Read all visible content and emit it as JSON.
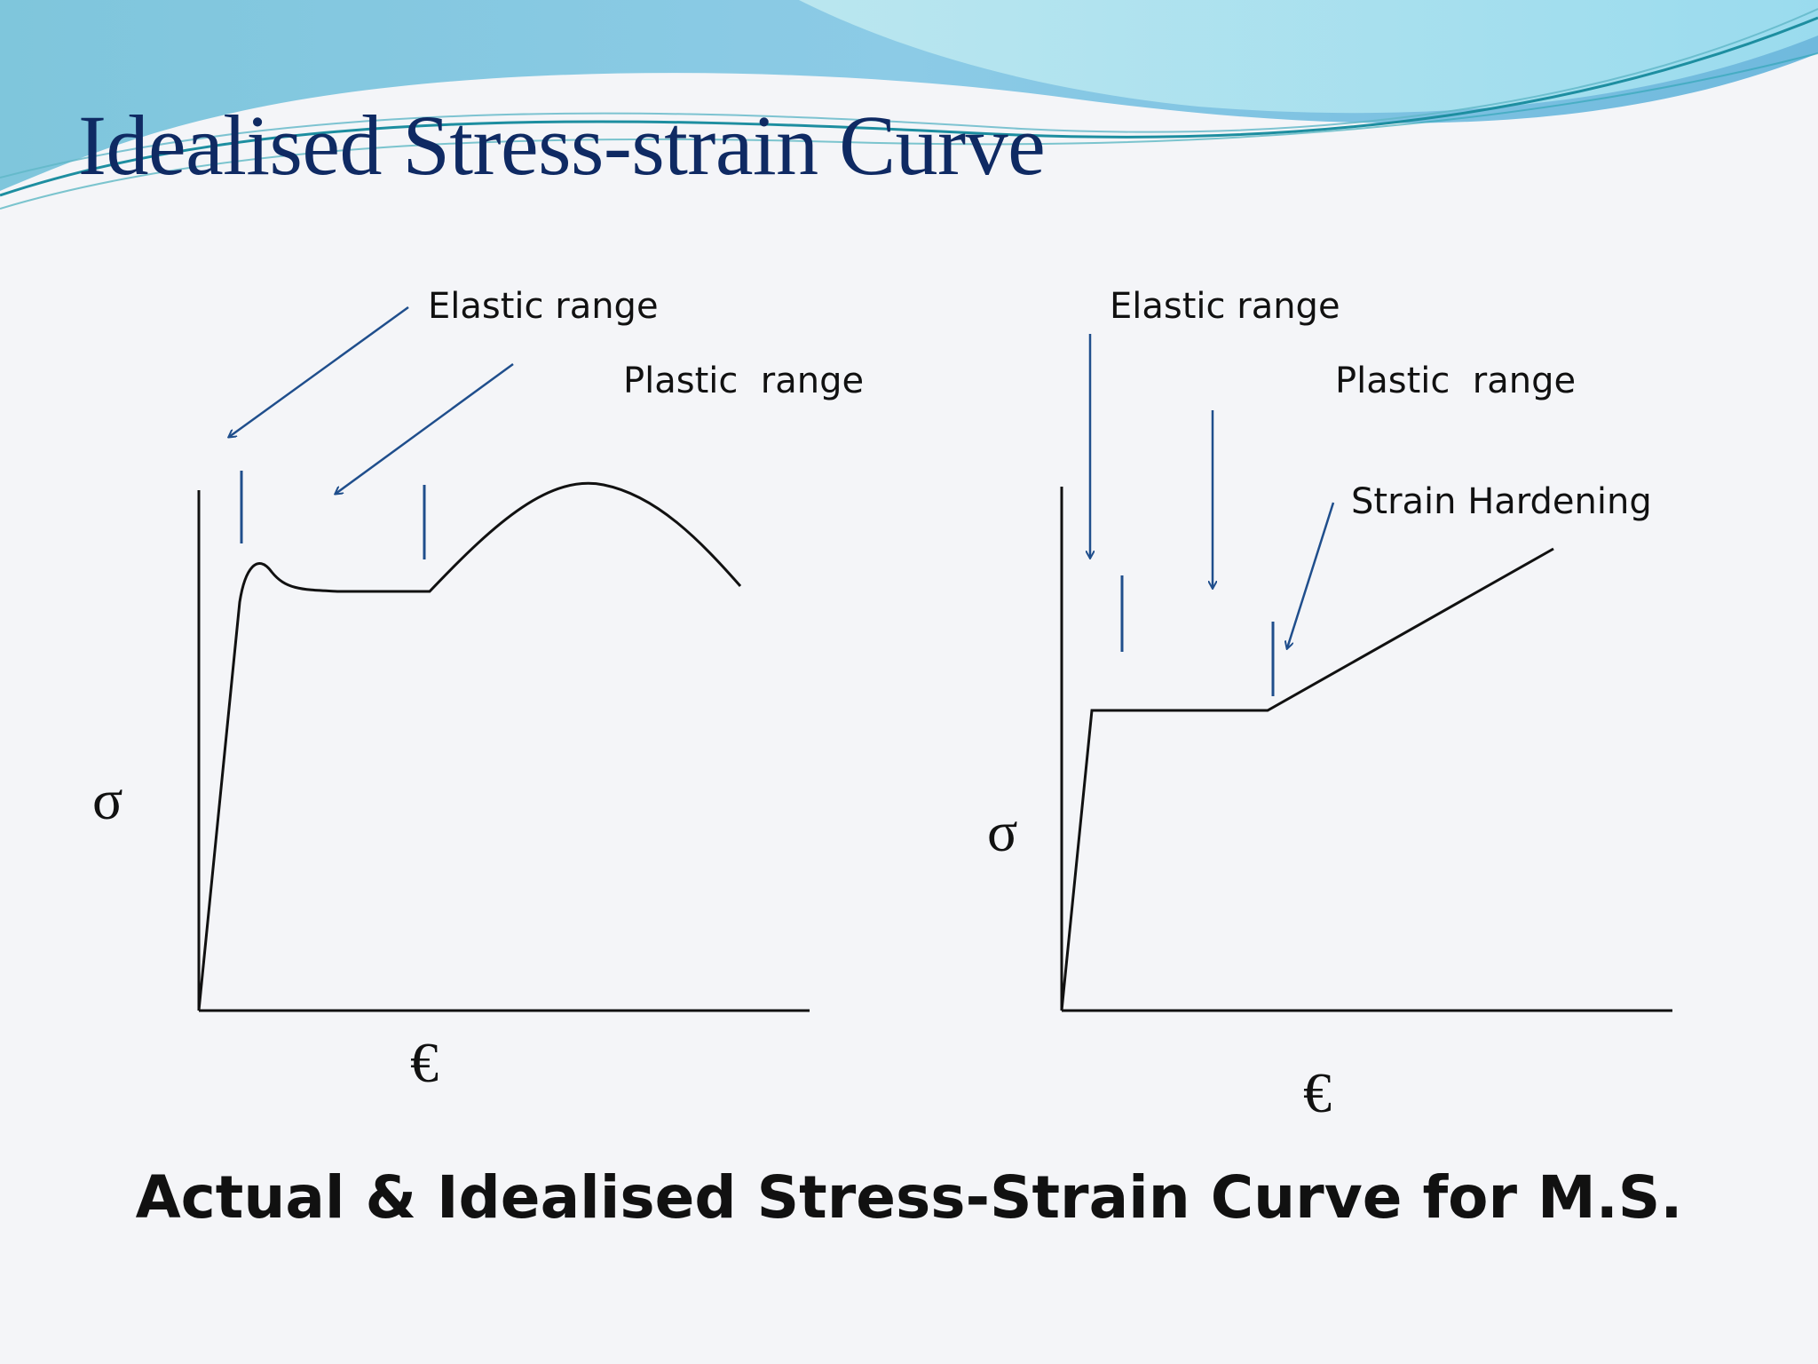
{
  "title": "Idealised Stress-strain Curve",
  "caption": "Actual & Idealised Stress-Strain Curve for M.S.",
  "left_diagram": {
    "elastic_label": "Elastic range",
    "plastic_label": "Plastic  range",
    "y_symbol": "σ",
    "x_symbol": "€"
  },
  "right_diagram": {
    "elastic_label": "Elastic range",
    "plastic_label": "Plastic  range",
    "hardening_label": "Strain Hardening",
    "y_symbol": "σ",
    "x_symbol": "€"
  },
  "colors": {
    "title": "#0f2a63",
    "arrow": "#1f4e8c",
    "curve": "#111111",
    "background": "#f4f5f8"
  }
}
